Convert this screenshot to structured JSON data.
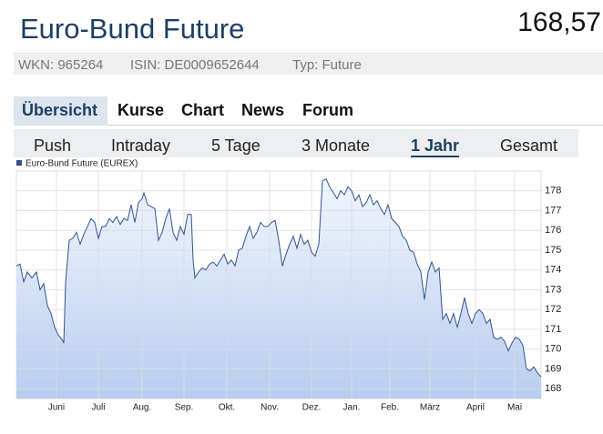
{
  "header": {
    "title": "Euro-Bund Future",
    "price": "168,57"
  },
  "info": [
    "WKN: 965264",
    "ISIN: DE0009652644",
    "Typ: Future"
  ],
  "tabs": {
    "items": [
      "Übersicht",
      "Kurse",
      "Chart",
      "News",
      "Forum"
    ],
    "active": 0
  },
  "subtabs": {
    "items": [
      "Push",
      "Intraday",
      "5 Tage",
      "3 Monate",
      "1 Jahr",
      "Gesamt"
    ],
    "active": 4
  },
  "chart_data": {
    "type": "area",
    "x": [
      0,
      4,
      8,
      12,
      17,
      22,
      26,
      30,
      34,
      38,
      42,
      46,
      50,
      52,
      54,
      58,
      62,
      66,
      70,
      74,
      78,
      82,
      86,
      90,
      94,
      98,
      102,
      106,
      110,
      114,
      118,
      122,
      126,
      130,
      134,
      138,
      140,
      144,
      148,
      152,
      156,
      160,
      164,
      168,
      172,
      176,
      180,
      184,
      188,
      192,
      194,
      196,
      200,
      204,
      208,
      212,
      216,
      220,
      224,
      228,
      232,
      236,
      240,
      244,
      248,
      252,
      256,
      260,
      264,
      268,
      272,
      276,
      280,
      284,
      288,
      292,
      296,
      300,
      304,
      308,
      312,
      316,
      320,
      324,
      328,
      332,
      336,
      340,
      344,
      348,
      352,
      356,
      360,
      364,
      368,
      372,
      376,
      380,
      384,
      388,
      392,
      396,
      400,
      404,
      408,
      412,
      416,
      420,
      424,
      428,
      432,
      436,
      440,
      444,
      448,
      452,
      456,
      460,
      464,
      468,
      472,
      476,
      480,
      484,
      488,
      492,
      496,
      500,
      504,
      508,
      512,
      516,
      520,
      524,
      528,
      532,
      536,
      540,
      544,
      548,
      552,
      556,
      560,
      564,
      568,
      572,
      576
    ],
    "series": [
      {
        "name": "Euro-Bund Future (EUREX)",
        "color": "#34528f",
        "values": [
          174.2,
          174.3,
          173.4,
          173.9,
          173.6,
          173.9,
          173.0,
          173.3,
          172.2,
          171.8,
          171.1,
          170.7,
          170.5,
          170.3,
          173.4,
          175.5,
          175.6,
          175.9,
          175.3,
          175.8,
          176.2,
          176.6,
          176.4,
          175.6,
          176.2,
          176.2,
          176.6,
          176.4,
          176.7,
          176.3,
          176.6,
          176.5,
          177.3,
          176.4,
          177.4,
          177.6,
          177.9,
          177.3,
          177.2,
          177.1,
          175.5,
          175.9,
          176.6,
          177.1,
          175.9,
          175.5,
          176.2,
          175.8,
          176.8,
          176.8,
          174.5,
          173.6,
          173.9,
          174.1,
          174.0,
          174.3,
          174.4,
          174.2,
          174.5,
          174.8,
          174.3,
          174.5,
          174.2,
          175.0,
          175.1,
          175.7,
          176.2,
          175.6,
          175.9,
          176.4,
          176.2,
          176.2,
          176.4,
          176.5,
          175.5,
          174.2,
          174.8,
          175.3,
          175.7,
          175.1,
          175.8,
          175.3,
          175.5,
          174.9,
          174.7,
          175.3,
          178.5,
          178.6,
          178.2,
          177.9,
          177.6,
          178.0,
          177.8,
          178.2,
          178.0,
          177.5,
          177.8,
          177.2,
          177.4,
          177.8,
          177.3,
          177.5,
          177.1,
          176.8,
          177.3,
          176.6,
          176.4,
          176.2,
          175.7,
          175.5,
          175.0,
          174.9,
          174.3,
          173.9,
          172.5,
          173.9,
          174.4,
          173.9,
          174.1,
          171.5,
          171.8,
          171.3,
          171.8,
          171.1,
          171.8,
          172.6,
          171.8,
          171.3,
          171.8,
          172.0,
          171.8,
          171.3,
          171.5,
          170.6,
          170.5,
          170.6,
          170.4,
          169.9,
          170.3,
          170.6,
          170.5,
          170.2,
          169.0,
          168.9,
          169.1,
          168.8,
          168.6
        ]
      }
    ],
    "xlim": [
      0,
      576
    ],
    "xticks": [
      {
        "value": 44,
        "label": "Juni"
      },
      {
        "value": 90,
        "label": "Juli"
      },
      {
        "value": 138,
        "label": "Aug."
      },
      {
        "value": 184,
        "label": "Sep."
      },
      {
        "value": 231,
        "label": "Okt."
      },
      {
        "value": 278,
        "label": "Nov."
      },
      {
        "value": 324,
        "label": "Dez."
      },
      {
        "value": 368,
        "label": "Jan."
      },
      {
        "value": 410,
        "label": "Feb."
      },
      {
        "value": 454,
        "label": "März"
      },
      {
        "value": 504,
        "label": "April"
      },
      {
        "value": 547,
        "label": "Mai"
      }
    ],
    "ylim": [
      167.5,
      179
    ],
    "yticks": [
      168,
      169,
      170,
      171,
      172,
      173,
      174,
      175,
      176,
      177,
      178
    ],
    "grid": true
  }
}
